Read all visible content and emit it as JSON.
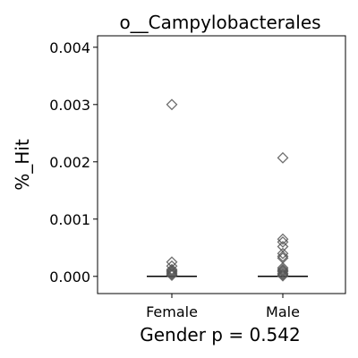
{
  "chart_data": {
    "type": "strip",
    "title": "o__Campylobacterales",
    "ylabel": "%_Hit",
    "xlabel": "Gender p = 0.542",
    "categories": [
      "Female",
      "Male"
    ],
    "ylim": [
      -0.0003,
      0.0042
    ],
    "yticks": [
      0.0,
      0.001,
      0.002,
      0.003,
      0.004
    ],
    "ytick_labels": [
      "0.000",
      "0.001",
      "0.002",
      "0.003",
      "0.004"
    ],
    "medians": [
      0.0,
      0.0
    ],
    "points": [
      [
        0.003,
        0.00025,
        0.00018,
        0.00012,
        0.0001,
        8e-05,
        6e-05,
        4e-05,
        2e-05
      ],
      [
        0.00207,
        0.00065,
        0.0006,
        0.00052,
        0.0004,
        0.00035,
        0.00032,
        0.00015,
        0.00012,
        0.0001,
        8e-05,
        5e-05,
        3e-05,
        1e-05
      ]
    ],
    "marker": "diamond-open",
    "marker_color": "#555555",
    "grid": false,
    "legend": "none"
  }
}
